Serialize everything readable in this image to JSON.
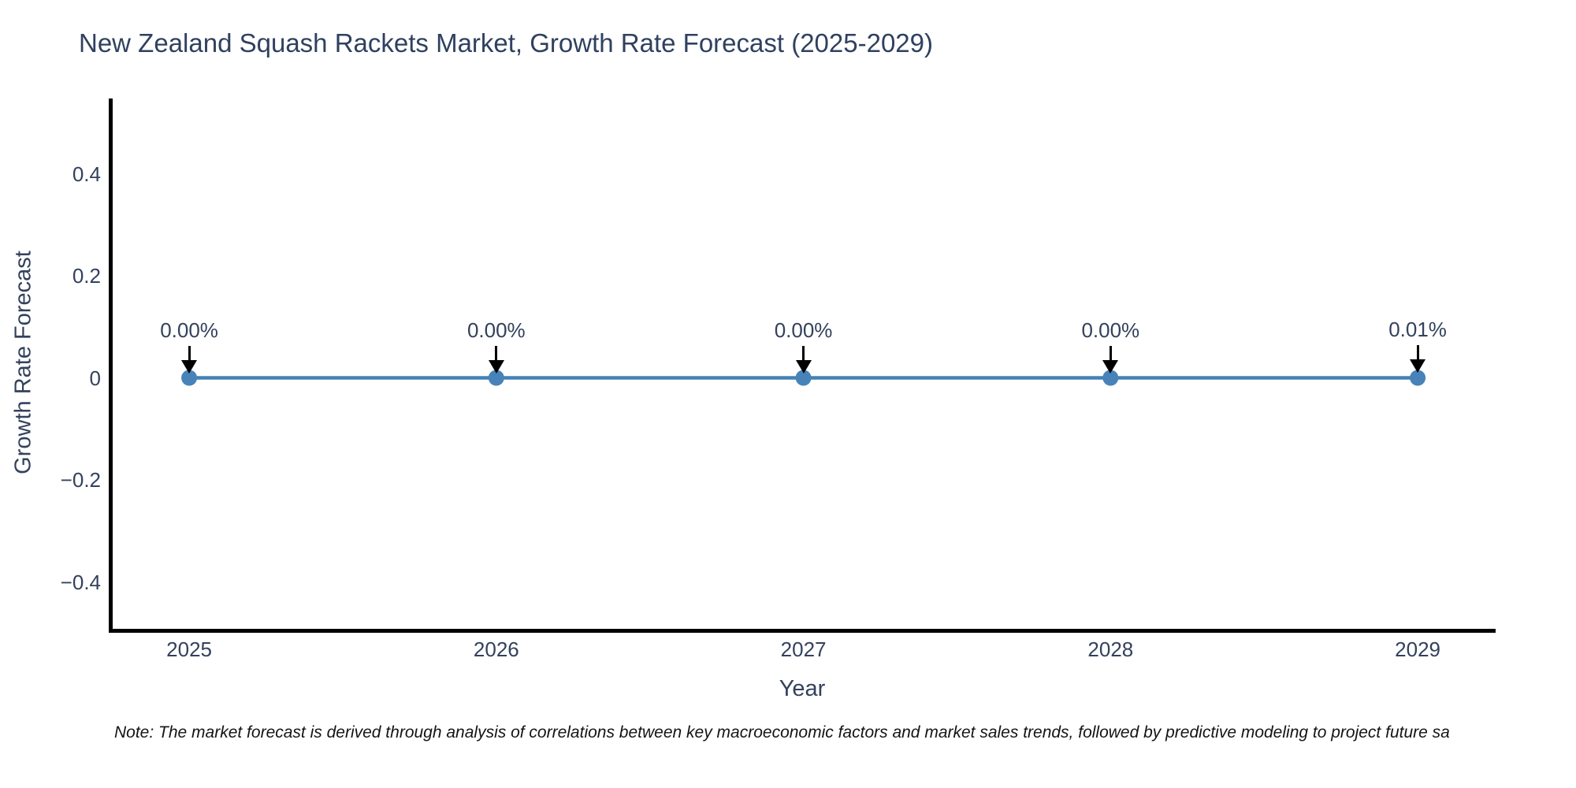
{
  "chart_data": {
    "type": "line",
    "title": "New Zealand Squash Rackets Market, Growth Rate Forecast (2025-2029)",
    "xlabel": "Year",
    "ylabel": "Growth Rate Forecast",
    "categories": [
      "2025",
      "2026",
      "2027",
      "2028",
      "2029"
    ],
    "series": [
      {
        "name": "Growth Rate Forecast",
        "values_percent": [
          0.0,
          0.0,
          0.0,
          0.0,
          0.01
        ]
      }
    ],
    "point_labels": [
      "0.00%",
      "0.00%",
      "0.00%",
      "0.00%",
      "0.01%"
    ],
    "ytick_values": [
      0.4,
      0.2,
      0,
      -0.2,
      -0.4
    ],
    "ytick_labels": [
      "0.4",
      "0.2",
      "0",
      "−0.2",
      "−0.4"
    ],
    "ylim": [
      -0.4995,
      0.5475
    ],
    "grid": false,
    "legend": "none",
    "colors": {
      "line": "#4581b6",
      "marker": "#4783b8",
      "axis": "#000000",
      "text": "#33415c",
      "annotation_arrow": "#000000"
    }
  },
  "note": {
    "text": "Note: The market forecast is derived through analysis of correlations between key macroeconomic factors and market sales trends, followed by predictive modeling to project future sa"
  }
}
